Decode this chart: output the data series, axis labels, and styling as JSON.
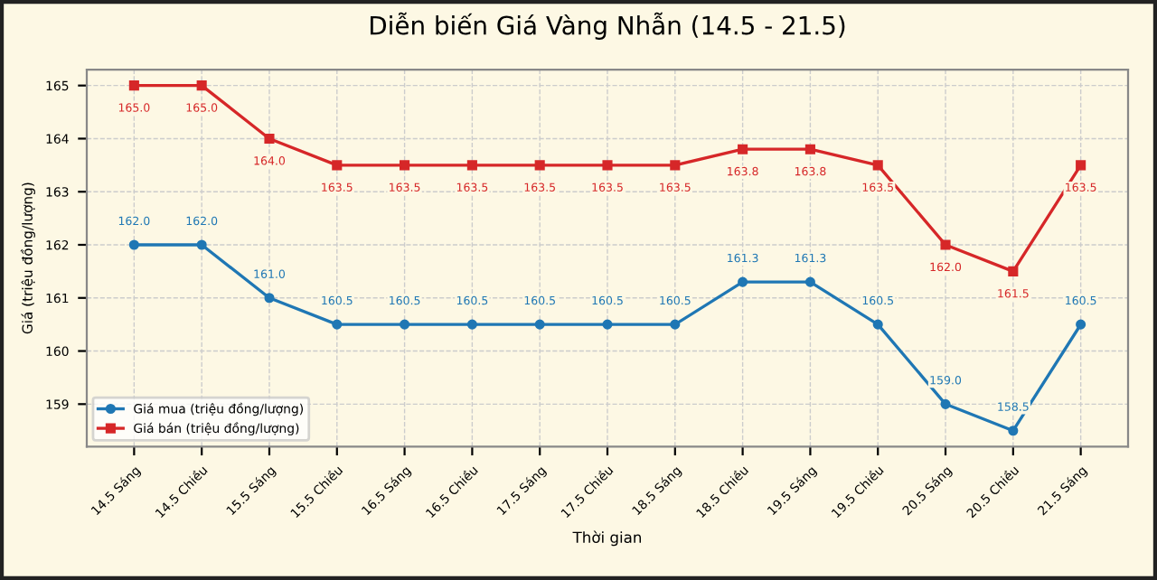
{
  "chart_data": {
    "type": "line",
    "title": "Diễn biến Giá Vàng Nhẫn (14.5 - 21.5)",
    "xlabel": "Thời gian",
    "ylabel": "Giá (triệu đồng/lượng)",
    "categories": [
      "14.5 Sáng",
      "14.5 Chiều",
      "15.5 Sáng",
      "15.5 Chiều",
      "16.5 Sáng",
      "16.5 Chiều",
      "17.5 Sáng",
      "17.5 Chiều",
      "18.5 Sáng",
      "18.5 Chiều",
      "19.5 Sáng",
      "19.5 Chiều",
      "20.5 Sáng",
      "20.5 Chiều",
      "21.5 Sáng"
    ],
    "series": [
      {
        "name": "Giá mua (triệu đồng/lượng)",
        "color": "#1f77b4",
        "marker": "circle",
        "values": [
          162.0,
          162.0,
          161.0,
          160.5,
          160.5,
          160.5,
          160.5,
          160.5,
          160.5,
          161.3,
          161.3,
          160.5,
          159.0,
          158.5,
          160.5
        ],
        "value_labels": [
          "162.0",
          "162.0",
          "161.0",
          "160.5",
          "160.5",
          "160.5",
          "160.5",
          "160.5",
          "160.5",
          "161.3",
          "161.3",
          "160.5",
          "159.0",
          "158.5",
          "160.5"
        ]
      },
      {
        "name": "Giá bán (triệu đồng/lượng)",
        "color": "#d62728",
        "marker": "square",
        "values": [
          165.0,
          165.0,
          164.0,
          163.5,
          163.5,
          163.5,
          163.5,
          163.5,
          163.5,
          163.8,
          163.8,
          163.5,
          162.0,
          161.5,
          163.5
        ],
        "value_labels": [
          "165.0",
          "165.0",
          "164.0",
          "163.5",
          "163.5",
          "163.5",
          "163.5",
          "163.5",
          "163.5",
          "163.8",
          "163.8",
          "163.5",
          "162.0",
          "161.5",
          "163.5"
        ]
      }
    ],
    "ylim": [
      158.2,
      165.3
    ],
    "yticks": [
      159,
      160,
      161,
      162,
      163,
      164,
      165
    ],
    "grid": true,
    "legend": "bottom left",
    "line_style": "solid"
  }
}
